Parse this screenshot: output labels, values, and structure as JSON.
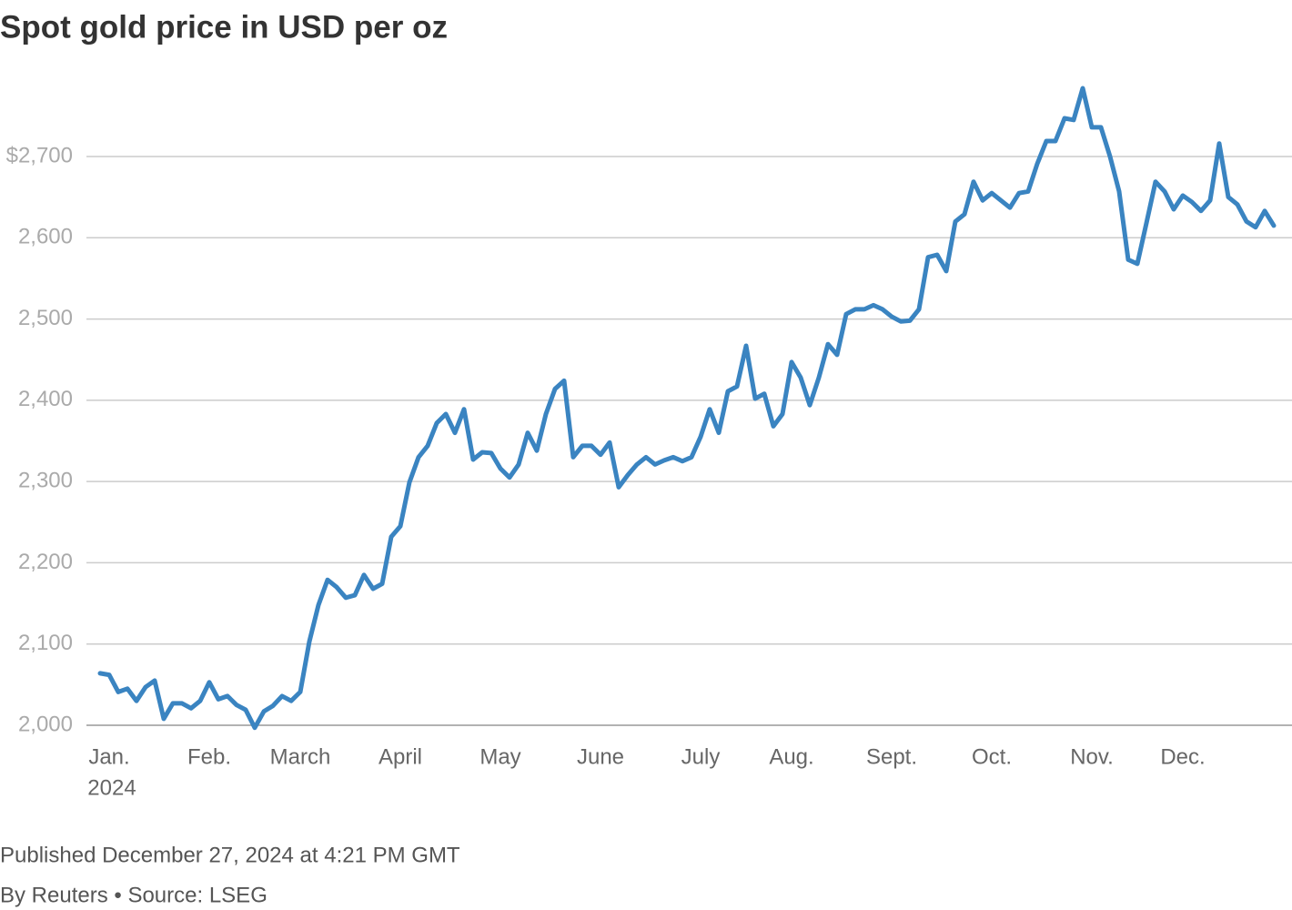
{
  "chart_data": {
    "type": "line",
    "title": "Spot gold price in USD per oz",
    "xlabel": "2024",
    "published": "Published December 27, 2024 at 4:21 PM GMT",
    "credit": "By Reuters • Source: LSEG",
    "categories": [
      null,
      "Jan.",
      null,
      null,
      null,
      null,
      null,
      null,
      null,
      null,
      null,
      null,
      "Feb.",
      null,
      null,
      null,
      null,
      null,
      null,
      null,
      null,
      null,
      "March",
      null,
      null,
      null,
      null,
      null,
      null,
      null,
      null,
      null,
      null,
      "April",
      null,
      null,
      null,
      null,
      null,
      null,
      null,
      null,
      null,
      null,
      "May",
      null,
      null,
      null,
      null,
      null,
      null,
      null,
      null,
      null,
      null,
      "June",
      null,
      null,
      null,
      null,
      null,
      null,
      null,
      null,
      null,
      null,
      "July",
      null,
      null,
      null,
      null,
      null,
      null,
      null,
      null,
      null,
      "Aug.",
      null,
      null,
      null,
      null,
      null,
      null,
      null,
      null,
      null,
      null,
      "Sept.",
      null,
      null,
      null,
      null,
      null,
      null,
      null,
      null,
      null,
      null,
      "Oct.",
      null,
      null,
      null,
      null,
      null,
      null,
      null,
      null,
      null,
      null,
      "Nov.",
      null,
      null,
      null,
      null,
      null,
      null,
      null,
      null,
      null,
      "Dec.",
      null,
      null,
      null,
      null,
      null,
      null,
      null,
      null,
      null,
      null
    ],
    "series": [
      {
        "name": "Spot gold",
        "color": "#3a84c1",
        "values": [
          2064,
          2062,
          2041,
          2045,
          2030,
          2047,
          2055,
          2008,
          2027,
          2027,
          2021,
          2030,
          2053,
          2032,
          2036,
          2025,
          2019,
          1997,
          2017,
          2024,
          2036,
          2030,
          2041,
          2103,
          2148,
          2179,
          2170,
          2157,
          2160,
          2185,
          2168,
          2174,
          2232,
          2245,
          2299,
          2330,
          2344,
          2372,
          2383,
          2360,
          2389,
          2327,
          2336,
          2335,
          2316,
          2305,
          2321,
          2360,
          2338,
          2383,
          2414,
          2424,
          2330,
          2344,
          2344,
          2333,
          2348,
          2293,
          2308,
          2321,
          2330,
          2321,
          2326,
          2330,
          2325,
          2330,
          2355,
          2389,
          2360,
          2411,
          2417,
          2467,
          2402,
          2408,
          2368,
          2383,
          2447,
          2428,
          2394,
          2428,
          2469,
          2456,
          2506,
          2512,
          2512,
          2517,
          2512,
          2503,
          2497,
          2498,
          2512,
          2576,
          2579,
          2559,
          2620,
          2629,
          2669,
          2646,
          2655,
          2646,
          2637,
          2655,
          2657,
          2691,
          2719,
          2719,
          2747,
          2745,
          2784,
          2736,
          2736,
          2700,
          2657,
          2573,
          2568,
          2618,
          2669,
          2657,
          2635,
          2652,
          2644,
          2633,
          2646,
          2716,
          2650,
          2641,
          2620,
          2613,
          2633,
          2615
        ]
      }
    ],
    "ylim": [
      1980,
      2800
    ],
    "yticks": [
      {
        "value": 2000,
        "label": "2,000"
      },
      {
        "value": 2100,
        "label": "2,100"
      },
      {
        "value": 2200,
        "label": "2,200"
      },
      {
        "value": 2300,
        "label": "2,300"
      },
      {
        "value": 2400,
        "label": "2,400"
      },
      {
        "value": 2500,
        "label": "2,500"
      },
      {
        "value": 2600,
        "label": "2,600"
      },
      {
        "value": 2700,
        "label": "$2,700"
      }
    ],
    "grid": true
  }
}
